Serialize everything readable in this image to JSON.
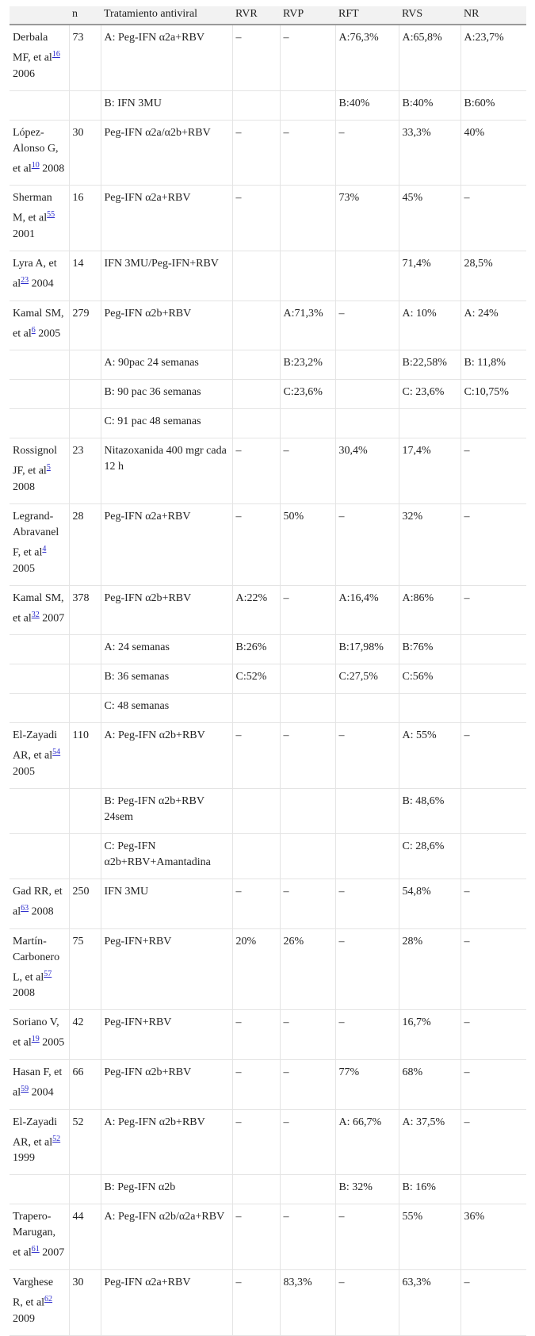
{
  "table": {
    "header": [
      "n",
      "Tratamiento antiviral",
      "RVR",
      "RVP",
      "RFT",
      "RVS",
      "NR"
    ],
    "rows": [
      [
        {
          "name": "Derbala MF, et al",
          "ref": "16",
          "year": "2006"
        },
        "73",
        "A: Peg-IFN α2a+RBV",
        "–",
        "–",
        "A:76,3%",
        "A:65,8%",
        "A:23,7%"
      ],
      [
        null,
        null,
        "B: IFN 3MU",
        null,
        null,
        "B:40%",
        "B:40%",
        "B:60%"
      ],
      [
        {
          "name": "López-Alonso G, et al",
          "ref": "10",
          "year": "2008"
        },
        "30",
        "Peg-IFN α2a/α2b+RBV",
        "–",
        "–",
        "–",
        "33,3%",
        "40%"
      ],
      [
        {
          "name": "Sherman M, et al",
          "ref": "55",
          "year": "2001"
        },
        "16",
        "Peg-IFN α2a+RBV",
        "–",
        null,
        "73%",
        "45%",
        "–"
      ],
      [
        {
          "name": "Lyra A, et al",
          "ref": "23",
          "year": "2004"
        },
        "14",
        "IFN 3MU/Peg-IFN+RBV",
        null,
        null,
        null,
        "71,4%",
        "28,5%"
      ],
      [
        {
          "name": "Kamal SM, et al",
          "ref": "6",
          "year": "2005"
        },
        "279",
        "Peg-IFN α2b+RBV",
        null,
        "A:71,3%",
        "–",
        "A: 10%",
        "A: 24%"
      ],
      [
        null,
        null,
        "A: 90pac 24 semanas",
        null,
        "B:23,2%",
        null,
        "B:22,58%",
        "B: 11,8%"
      ],
      [
        null,
        null,
        "B: 90 pac 36 semanas",
        null,
        "C:23,6%",
        null,
        "C: 23,6%",
        "C:10,75%"
      ],
      [
        null,
        null,
        "C: 91 pac 48 semanas",
        null,
        null,
        null,
        null,
        null
      ],
      [
        {
          "name": "Rossignol JF, et al",
          "ref": "5",
          "year": "2008"
        },
        "23",
        "Nitazoxanida 400 mgr cada 12 h",
        "–",
        "–",
        "30,4%",
        "17,4%",
        "–"
      ],
      [
        {
          "name": "Legrand-Abravanel F, et al",
          "ref": "4",
          "year": "2005"
        },
        "28",
        "Peg-IFN α2a+RBV",
        "–",
        "50%",
        "–",
        "32%",
        "–"
      ],
      [
        {
          "name": "Kamal SM, et al",
          "ref": "32",
          "year": "2007"
        },
        "378",
        "Peg-IFN α2b+RBV",
        "A:22%",
        "–",
        "A:16,4%",
        "A:86%",
        "–"
      ],
      [
        null,
        null,
        "A: 24 semanas",
        "B:26%",
        null,
        "B:17,98%",
        "B:76%",
        null
      ],
      [
        null,
        null,
        "B: 36 semanas",
        "C:52%",
        null,
        "C:27,5%",
        "C:56%",
        null
      ],
      [
        null,
        null,
        "C: 48 semanas",
        null,
        null,
        null,
        null,
        null
      ],
      [
        {
          "name": "El-Zayadi AR, et al",
          "ref": "54",
          "year": "2005"
        },
        "110",
        "A: Peg-IFN α2b+RBV",
        "–",
        "–",
        "–",
        "A: 55%",
        "–"
      ],
      [
        null,
        null,
        "B: Peg-IFN α2b+RBV 24sem",
        null,
        null,
        null,
        "B: 48,6%",
        null
      ],
      [
        null,
        null,
        "C: Peg-IFN α2b+RBV+Amantadina",
        null,
        null,
        null,
        "C: 28,6%",
        null
      ],
      [
        {
          "name": "Gad RR, et al",
          "ref": "63",
          "year": "2008"
        },
        "250",
        "IFN 3MU",
        "–",
        "–",
        "–",
        "54,8%",
        "–"
      ],
      [
        {
          "name": "Martín-Carbonero L, et al",
          "ref": "57",
          "year": "2008"
        },
        "75",
        "Peg-IFN+RBV",
        "20%",
        "26%",
        "–",
        "28%",
        "–"
      ],
      [
        {
          "name": "Soriano V, et al",
          "ref": "19",
          "year": "2005"
        },
        "42",
        "Peg-IFN+RBV",
        "–",
        "–",
        "–",
        "16,7%",
        "–"
      ],
      [
        {
          "name": "Hasan F, et al",
          "ref": "59",
          "year": "2004"
        },
        "66",
        "Peg-IFN α2b+RBV",
        "–",
        "–",
        "77%",
        "68%",
        "–"
      ],
      [
        {
          "name": "El-Zayadi AR, et al",
          "ref": "52",
          "year": "1999"
        },
        "52",
        "A: Peg-IFN α2b+RBV",
        "–",
        "–",
        "A: 66,7%",
        "A: 37,5%",
        "–"
      ],
      [
        null,
        null,
        "B: Peg-IFN α2b",
        null,
        null,
        "B: 32%",
        "B: 16%",
        null
      ],
      [
        {
          "name": "Trapero-Marugan, et al",
          "ref": "61",
          "year": "2007"
        },
        "44",
        "A: Peg-IFN α2b/α2a+RBV",
        "–",
        "–",
        "–",
        "55%",
        "36%"
      ],
      [
        {
          "name": "Varghese R, et al",
          "ref": "62",
          "year": "2009"
        },
        "30",
        "Peg-IFN α2a+RBV",
        "–",
        "83,3%",
        "–",
        "63,3%",
        "–"
      ]
    ]
  }
}
